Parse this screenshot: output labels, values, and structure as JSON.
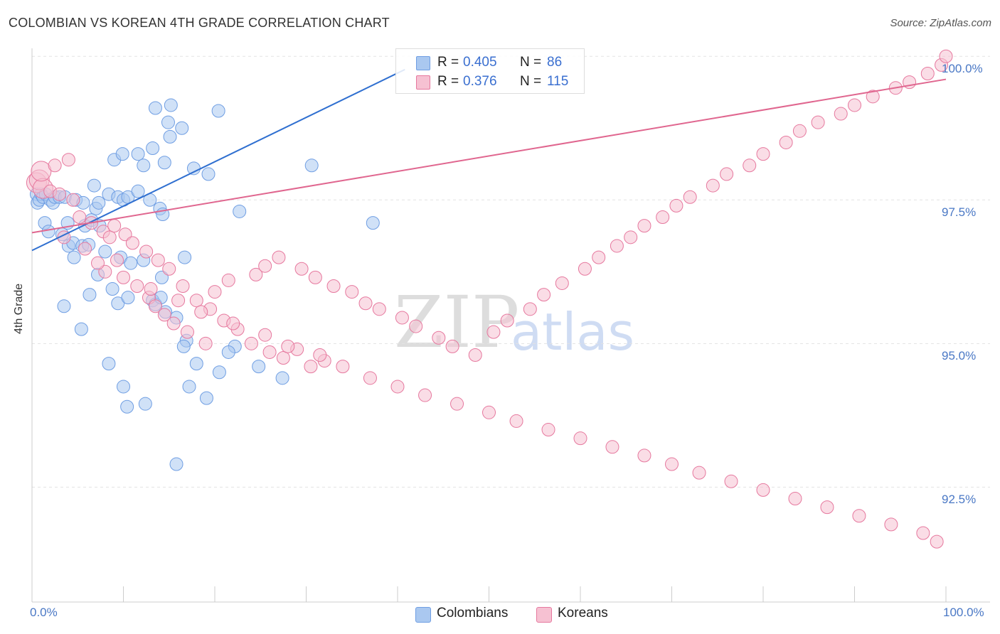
{
  "title": "COLOMBIAN VS KOREAN 4TH GRADE CORRELATION CHART",
  "source": "Source: ZipAtlas.com",
  "watermark": {
    "zip": "ZIP",
    "atlas": "atlas"
  },
  "chart_data": {
    "type": "scatter",
    "ylabel": "4th Grade",
    "xlim": [
      0,
      100
    ],
    "ylim": [
      90.5,
      100.3
    ],
    "x_tick_labels": {
      "left": "0.0%",
      "right": "100.0%"
    },
    "y_ticks": [
      {
        "value": 100.0,
        "label": "100.0%"
      },
      {
        "value": 97.5,
        "label": "97.5%"
      },
      {
        "value": 95.0,
        "label": "95.0%"
      },
      {
        "value": 92.5,
        "label": "92.5%"
      }
    ],
    "grid": true,
    "legend_position": "top-center",
    "series": [
      {
        "name": "Colombians",
        "color": "#6f9ee3",
        "fill": "#aac8f0",
        "r_label": "R =",
        "r_value": "0.405",
        "n_label": "N =",
        "n_value": "86",
        "trend": {
          "x0": 0,
          "y0": 96.62,
          "x1": 40.8,
          "y1": 99.77
        },
        "points": [
          [
            0.5,
            97.6
          ],
          [
            0.6,
            97.45
          ],
          [
            0.8,
            97.5
          ],
          [
            1.0,
            97.6
          ],
          [
            1.2,
            97.55
          ],
          [
            1.5,
            97.6
          ],
          [
            2.0,
            97.5
          ],
          [
            2.3,
            97.45
          ],
          [
            2.5,
            97.55
          ],
          [
            3.0,
            97.55
          ],
          [
            3.6,
            97.55
          ],
          [
            4.8,
            97.5
          ],
          [
            5.6,
            97.45
          ],
          [
            7.0,
            97.35
          ],
          [
            7.3,
            97.45
          ],
          [
            8.4,
            97.6
          ],
          [
            9.4,
            97.55
          ],
          [
            10.0,
            97.5
          ],
          [
            10.5,
            97.55
          ],
          [
            11.6,
            97.65
          ],
          [
            12.9,
            97.5
          ],
          [
            6.8,
            97.75
          ],
          [
            14.0,
            97.35
          ],
          [
            14.3,
            97.25
          ],
          [
            1.4,
            97.1
          ],
          [
            3.9,
            97.1
          ],
          [
            5.8,
            97.05
          ],
          [
            6.5,
            97.15
          ],
          [
            7.4,
            97.05
          ],
          [
            1.8,
            96.95
          ],
          [
            3.3,
            96.9
          ],
          [
            4.0,
            96.7
          ],
          [
            4.5,
            96.75
          ],
          [
            5.5,
            96.7
          ],
          [
            6.2,
            96.72
          ],
          [
            8.0,
            96.6
          ],
          [
            9.7,
            96.5
          ],
          [
            10.8,
            96.4
          ],
          [
            12.2,
            96.45
          ],
          [
            14.2,
            96.15
          ],
          [
            16.7,
            96.5
          ],
          [
            7.2,
            96.2
          ],
          [
            8.8,
            95.95
          ],
          [
            9.4,
            95.7
          ],
          [
            10.5,
            95.8
          ],
          [
            13.2,
            95.75
          ],
          [
            13.5,
            95.68
          ],
          [
            14.1,
            95.8
          ],
          [
            14.6,
            95.55
          ],
          [
            15.8,
            95.45
          ],
          [
            16.9,
            95.05
          ],
          [
            18.0,
            94.65
          ],
          [
            19.1,
            94.05
          ],
          [
            17.2,
            94.25
          ],
          [
            20.5,
            94.5
          ],
          [
            22.2,
            94.95
          ],
          [
            24.8,
            94.6
          ],
          [
            27.4,
            94.4
          ],
          [
            16.6,
            94.95
          ],
          [
            21.5,
            94.85
          ],
          [
            15.8,
            92.9
          ],
          [
            12.4,
            93.95
          ],
          [
            10.4,
            93.9
          ],
          [
            10.0,
            94.25
          ],
          [
            8.4,
            94.65
          ],
          [
            5.4,
            95.25
          ],
          [
            3.5,
            95.65
          ],
          [
            4.6,
            96.5
          ],
          [
            6.3,
            95.85
          ],
          [
            9.0,
            98.2
          ],
          [
            9.9,
            98.3
          ],
          [
            11.6,
            98.3
          ],
          [
            12.2,
            98.1
          ],
          [
            13.2,
            98.4
          ],
          [
            14.5,
            98.15
          ],
          [
            13.5,
            99.1
          ],
          [
            14.9,
            98.85
          ],
          [
            15.1,
            98.6
          ],
          [
            17.7,
            98.05
          ],
          [
            16.4,
            98.75
          ],
          [
            19.3,
            97.95
          ],
          [
            22.7,
            97.3
          ],
          [
            30.6,
            98.1
          ],
          [
            37.3,
            97.1
          ],
          [
            15.2,
            99.15
          ],
          [
            20.4,
            99.05
          ]
        ]
      },
      {
        "name": "Koreans",
        "color": "#e6789e",
        "fill": "#f6c1d2",
        "r_label": "R =",
        "r_value": "0.376",
        "n_label": "N =",
        "n_value": "115",
        "trend": {
          "x0": 0,
          "y0": 96.93,
          "x1": 100,
          "y1": 99.6
        },
        "points": [
          [
            0.5,
            97.8
          ],
          [
            0.8,
            97.85
          ],
          [
            1.2,
            97.7
          ],
          [
            2.0,
            97.65
          ],
          [
            3.0,
            97.6
          ],
          [
            4.5,
            97.5
          ],
          [
            5.2,
            97.2
          ],
          [
            6.5,
            97.1
          ],
          [
            7.8,
            96.95
          ],
          [
            8.5,
            96.85
          ],
          [
            9.0,
            97.05
          ],
          [
            10.2,
            96.9
          ],
          [
            11.0,
            96.75
          ],
          [
            12.5,
            96.6
          ],
          [
            13.8,
            96.45
          ],
          [
            15.0,
            96.3
          ],
          [
            16.5,
            96.0
          ],
          [
            18.0,
            95.75
          ],
          [
            19.5,
            95.6
          ],
          [
            21.0,
            95.4
          ],
          [
            22.5,
            95.25
          ],
          [
            24.0,
            95.0
          ],
          [
            26.0,
            94.85
          ],
          [
            27.5,
            94.75
          ],
          [
            29.0,
            94.9
          ],
          [
            30.5,
            94.6
          ],
          [
            32.0,
            94.7
          ],
          [
            8.0,
            96.25
          ],
          [
            9.3,
            96.45
          ],
          [
            11.5,
            96.0
          ],
          [
            12.8,
            95.8
          ],
          [
            13.5,
            95.65
          ],
          [
            14.5,
            95.5
          ],
          [
            15.5,
            95.35
          ],
          [
            17.0,
            95.2
          ],
          [
            19.0,
            95.0
          ],
          [
            20.0,
            95.9
          ],
          [
            21.5,
            96.1
          ],
          [
            24.5,
            96.2
          ],
          [
            25.5,
            96.35
          ],
          [
            27.0,
            96.5
          ],
          [
            29.5,
            96.3
          ],
          [
            31.0,
            96.15
          ],
          [
            33.0,
            96.0
          ],
          [
            35.0,
            95.9
          ],
          [
            36.5,
            95.7
          ],
          [
            38.0,
            95.6
          ],
          [
            40.5,
            95.45
          ],
          [
            42.0,
            95.3
          ],
          [
            44.5,
            95.1
          ],
          [
            46.0,
            94.95
          ],
          [
            48.5,
            94.8
          ],
          [
            50.5,
            95.2
          ],
          [
            52.0,
            95.4
          ],
          [
            54.5,
            95.6
          ],
          [
            56.0,
            95.85
          ],
          [
            58.0,
            96.05
          ],
          [
            60.5,
            96.3
          ],
          [
            62.0,
            96.5
          ],
          [
            64.0,
            96.7
          ],
          [
            65.5,
            96.85
          ],
          [
            67.0,
            97.05
          ],
          [
            69.0,
            97.2
          ],
          [
            70.5,
            97.4
          ],
          [
            72.0,
            97.55
          ],
          [
            74.5,
            97.75
          ],
          [
            76.0,
            97.95
          ],
          [
            78.5,
            98.1
          ],
          [
            80.0,
            98.3
          ],
          [
            82.5,
            98.5
          ],
          [
            84.0,
            98.7
          ],
          [
            86.0,
            98.85
          ],
          [
            88.5,
            99.0
          ],
          [
            90.0,
            99.15
          ],
          [
            92.0,
            99.3
          ],
          [
            94.5,
            99.45
          ],
          [
            96.0,
            99.55
          ],
          [
            98.0,
            99.7
          ],
          [
            99.5,
            99.85
          ],
          [
            100.0,
            100.0
          ],
          [
            3.5,
            96.85
          ],
          [
            5.8,
            96.65
          ],
          [
            7.2,
            96.4
          ],
          [
            10.0,
            96.15
          ],
          [
            13.0,
            95.95
          ],
          [
            16.0,
            95.75
          ],
          [
            18.5,
            95.55
          ],
          [
            22.0,
            95.35
          ],
          [
            25.5,
            95.15
          ],
          [
            28.0,
            94.95
          ],
          [
            31.5,
            94.8
          ],
          [
            34.0,
            94.6
          ],
          [
            37.0,
            94.4
          ],
          [
            40.0,
            94.25
          ],
          [
            43.0,
            94.1
          ],
          [
            46.5,
            93.95
          ],
          [
            50.0,
            93.8
          ],
          [
            53.0,
            93.65
          ],
          [
            56.5,
            93.5
          ],
          [
            60.0,
            93.35
          ],
          [
            63.5,
            93.2
          ],
          [
            67.0,
            93.05
          ],
          [
            70.0,
            92.9
          ],
          [
            73.0,
            92.75
          ],
          [
            76.5,
            92.6
          ],
          [
            80.0,
            92.45
          ],
          [
            83.5,
            92.3
          ],
          [
            87.0,
            92.15
          ],
          [
            90.5,
            92.0
          ],
          [
            94.0,
            91.85
          ],
          [
            97.5,
            91.7
          ],
          [
            99.0,
            91.55
          ],
          [
            1.0,
            98.0
          ],
          [
            2.5,
            98.1
          ],
          [
            4.0,
            98.2
          ]
        ]
      }
    ]
  }
}
